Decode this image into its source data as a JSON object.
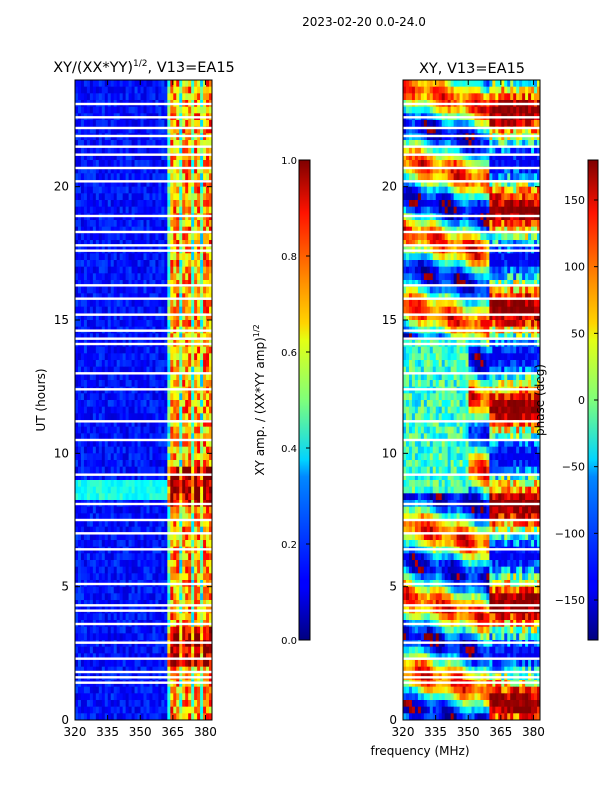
{
  "figure_title": "2023-02-20 0.0-24.0",
  "chart_data": [
    {
      "type": "heatmap",
      "title": "XY/(XX*YY)",
      "title_exponent": "1/2",
      "title_suffix": ", V13=EA15",
      "xlabel": "",
      "ylabel": "UT (hours)",
      "xlim": [
        320,
        383
      ],
      "ylim": [
        0,
        24
      ],
      "x_ticks": [
        320,
        335,
        350,
        365,
        380
      ],
      "y_ticks": [
        0,
        5,
        10,
        15,
        20
      ],
      "colorbar": {
        "label": "XY amp. / (XX*YY amp)",
        "label_exponent": "1/2",
        "range": [
          0.0,
          1.0
        ],
        "ticks": [
          "0.0",
          "0.2",
          "0.4",
          "0.6",
          "0.8",
          "1.0"
        ]
      },
      "background_value": 0.08,
      "high_band_x": [
        362,
        383
      ],
      "high_band_columns_x": [
        366,
        371,
        376,
        381
      ],
      "blank_rows_ut": [
        1.4,
        1.6,
        1.8,
        2.3,
        2.9,
        3.6,
        4.1,
        4.3,
        5.1,
        6.4,
        7.0,
        7.5,
        8.1,
        9.2,
        10.5,
        11.2,
        12.4,
        13.0,
        14.1,
        14.3,
        14.6,
        15.2,
        15.8,
        16.3,
        17.6,
        17.8,
        18.3,
        18.9,
        20.2,
        20.7,
        21.2,
        21.5,
        21.9,
        22.2,
        22.6,
        23.1
      ]
    },
    {
      "type": "heatmap",
      "title": "XY, V13=EA15",
      "xlabel": "frequency (MHz)",
      "ylabel": "",
      "xlim": [
        320,
        383
      ],
      "ylim": [
        0,
        24
      ],
      "x_ticks": [
        320,
        335,
        350,
        365,
        380
      ],
      "y_ticks": [
        0,
        5,
        10,
        15,
        20
      ],
      "colorbar": {
        "label": "phase (deg)",
        "range": [
          -180,
          180
        ],
        "ticks": [
          "−150",
          "−100",
          "−50",
          "0",
          "50",
          "100",
          "150"
        ]
      },
      "blank_rows_ut": [
        1.4,
        1.6,
        1.8,
        2.3,
        2.9,
        3.6,
        4.1,
        4.3,
        5.1,
        6.4,
        7.0,
        7.5,
        8.1,
        9.2,
        10.5,
        11.2,
        12.4,
        13.0,
        14.1,
        14.3,
        14.6,
        15.2,
        15.8,
        16.3,
        17.6,
        17.8,
        18.3,
        18.9,
        20.2,
        20.7,
        21.2,
        21.5,
        21.9,
        22.2,
        22.6,
        23.1
      ]
    }
  ]
}
